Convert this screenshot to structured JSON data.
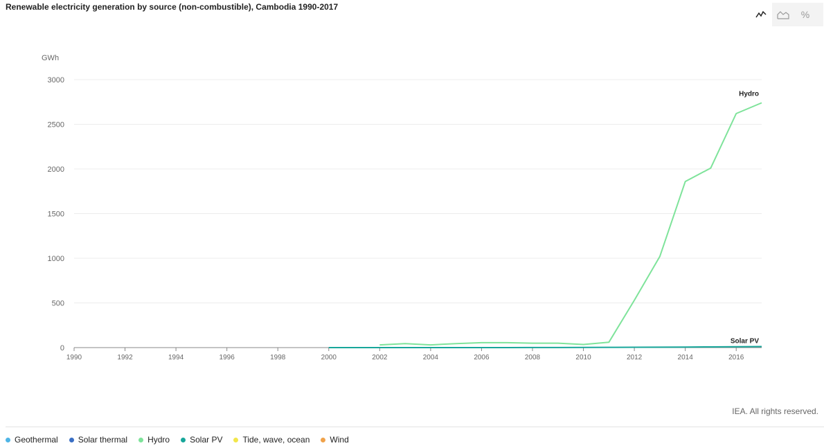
{
  "title": "Renewable electricity generation by source (non-combustible), Cambodia 1990-2017",
  "toolbar": {
    "buttons": [
      {
        "name": "line-chart-button",
        "icon": "line-chart-icon",
        "active": true
      },
      {
        "name": "area-chart-button",
        "icon": "area-chart-icon",
        "active": false
      },
      {
        "name": "percent-button",
        "icon": "percent-icon",
        "label": "%",
        "active": false
      }
    ]
  },
  "copyright": "IEA. All rights reserved.",
  "legend": [
    {
      "label": "Geothermal",
      "color": "#4fb5e6"
    },
    {
      "label": "Solar thermal",
      "color": "#3a6fc4"
    },
    {
      "label": "Hydro",
      "color": "#7ee39a"
    },
    {
      "label": "Solar PV",
      "color": "#17a69a"
    },
    {
      "label": "Tide, wave, ocean",
      "color": "#f2e64b"
    },
    {
      "label": "Wind",
      "color": "#f0a24a"
    }
  ],
  "chart_data": {
    "type": "line",
    "ylabel": "GWh",
    "xlim": [
      1990,
      2017
    ],
    "ylim": [
      0,
      3000
    ],
    "yticks": [
      0,
      500,
      1000,
      1500,
      2000,
      2500,
      3000
    ],
    "xticks": [
      1990,
      1992,
      1994,
      1996,
      1998,
      2000,
      2002,
      2004,
      2006,
      2008,
      2010,
      2012,
      2014,
      2016
    ],
    "grid": true,
    "legend_position": "bottom",
    "series": [
      {
        "name": "Hydro",
        "color": "#7ee39a",
        "label": "Hydro",
        "x": [
          2002,
          2003,
          2004,
          2005,
          2006,
          2007,
          2008,
          2009,
          2010,
          2011,
          2012,
          2013,
          2014,
          2015,
          2016,
          2017
        ],
        "y": [
          30,
          45,
          30,
          45,
          55,
          55,
          50,
          50,
          35,
          60,
          530,
          1020,
          1860,
          2010,
          2620,
          2740
        ]
      },
      {
        "name": "Solar PV",
        "color": "#17a69a",
        "label": "Solar PV",
        "x": [
          2000,
          2001,
          2002,
          2003,
          2004,
          2005,
          2006,
          2007,
          2008,
          2009,
          2010,
          2011,
          2012,
          2013,
          2014,
          2015,
          2016,
          2017
        ],
        "y": [
          0,
          0,
          0,
          0,
          0,
          0,
          0,
          0,
          1,
          1,
          2,
          3,
          4,
          5,
          6,
          8,
          10,
          12
        ]
      }
    ]
  }
}
